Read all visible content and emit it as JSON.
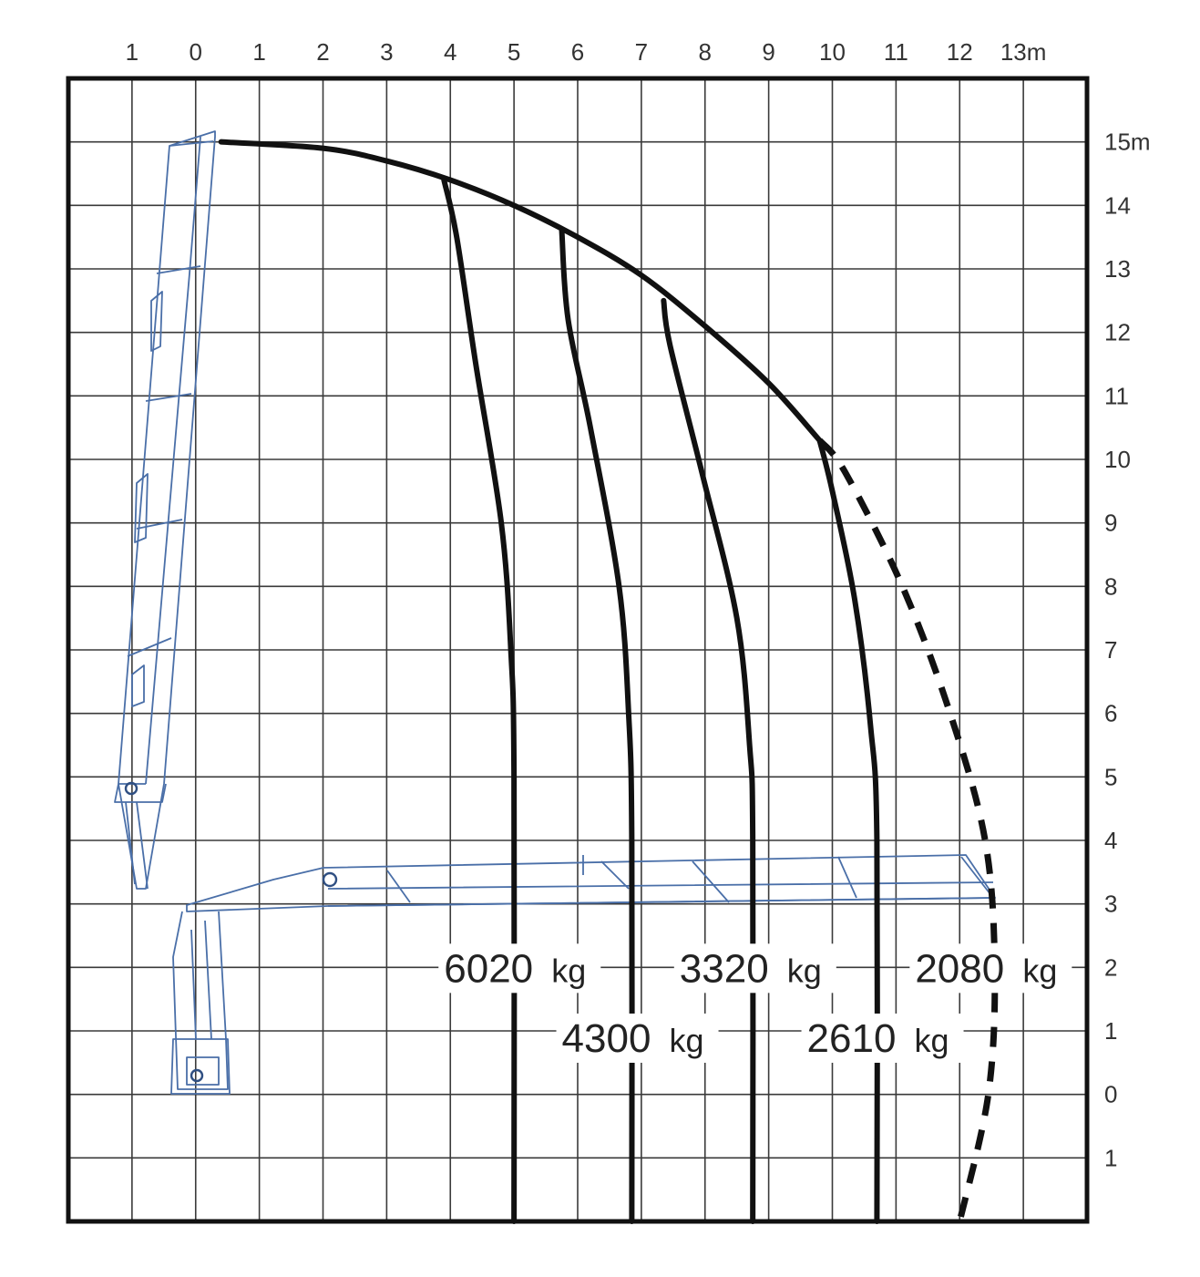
{
  "chart_data": {
    "type": "line",
    "title": "",
    "xlabel": "",
    "ylabel": "",
    "x_ticks": [
      "1",
      "0",
      "1",
      "2",
      "3",
      "4",
      "5",
      "6",
      "7",
      "8",
      "9",
      "10",
      "11",
      "12",
      "13m"
    ],
    "x_tick_values": [
      -1,
      0,
      1,
      2,
      3,
      4,
      5,
      6,
      7,
      8,
      9,
      10,
      11,
      12,
      13
    ],
    "y_ticks": [
      "15m",
      "14",
      "13",
      "12",
      "11",
      "10",
      "9",
      "8",
      "7",
      "6",
      "5",
      "4",
      "3",
      "2",
      "1",
      "0",
      "1"
    ],
    "y_tick_values": [
      15,
      14,
      13,
      12,
      11,
      10,
      9,
      8,
      7,
      6,
      5,
      4,
      3,
      2,
      1,
      0,
      -1
    ],
    "xlim": [
      -2,
      14
    ],
    "ylim": [
      -2,
      16
    ],
    "grid": true,
    "envelope": {
      "name": "",
      "points": [
        [
          0.4,
          15.0
        ],
        [
          2.0,
          14.9
        ],
        [
          3.0,
          14.7
        ],
        [
          4.0,
          14.4
        ],
        [
          5.0,
          14.0
        ],
        [
          6.0,
          13.5
        ],
        [
          7.0,
          12.9
        ],
        [
          8.0,
          12.1
        ],
        [
          9.0,
          11.2
        ],
        [
          9.8,
          10.3
        ]
      ]
    },
    "series": [
      {
        "name": "6020 kg",
        "points": [
          [
            3.9,
            14.4
          ],
          [
            4.1,
            13.5
          ],
          [
            4.4,
            11.5
          ],
          [
            4.8,
            9.0
          ],
          [
            4.95,
            7.0
          ],
          [
            5.0,
            5.0
          ],
          [
            5.0,
            -2.0
          ]
        ]
      },
      {
        "name": "4300 kg",
        "points": [
          [
            5.75,
            13.6
          ],
          [
            5.85,
            12.2
          ],
          [
            6.2,
            10.5
          ],
          [
            6.65,
            8.0
          ],
          [
            6.8,
            6.0
          ],
          [
            6.85,
            4.0
          ],
          [
            6.85,
            -2.0
          ]
        ]
      },
      {
        "name": "3320 kg",
        "points": [
          [
            7.35,
            12.5
          ],
          [
            7.45,
            11.8
          ],
          [
            7.95,
            9.8
          ],
          [
            8.5,
            7.5
          ],
          [
            8.7,
            5.5
          ],
          [
            8.75,
            4.0
          ],
          [
            8.75,
            -2.0
          ]
        ]
      },
      {
        "name": "2610 kg",
        "points": [
          [
            9.8,
            10.3
          ],
          [
            10.0,
            9.5
          ],
          [
            10.35,
            7.8
          ],
          [
            10.6,
            5.8
          ],
          [
            10.7,
            4.0
          ],
          [
            10.7,
            -2.0
          ]
        ]
      },
      {
        "name": "2080 kg",
        "dashed": true,
        "points": [
          [
            9.8,
            10.3
          ],
          [
            10.2,
            9.8
          ],
          [
            11.1,
            8.0
          ],
          [
            11.85,
            6.0
          ],
          [
            12.4,
            4.0
          ],
          [
            12.55,
            2.0
          ],
          [
            12.45,
            0.0
          ],
          [
            12.0,
            -2.0
          ]
        ]
      }
    ],
    "annotations": [
      {
        "text": "6020",
        "unit": "kg",
        "x": 3.9,
        "y": 2.0
      },
      {
        "text": "4300",
        "unit": "kg",
        "x": 5.75,
        "y": 0.9
      },
      {
        "text": "3320",
        "unit": "kg",
        "x": 7.6,
        "y": 2.0
      },
      {
        "text": "2610",
        "unit": "kg",
        "x": 9.6,
        "y": 0.9
      },
      {
        "text": "2080",
        "unit": "kg",
        "x": 11.3,
        "y": 2.0
      }
    ]
  }
}
